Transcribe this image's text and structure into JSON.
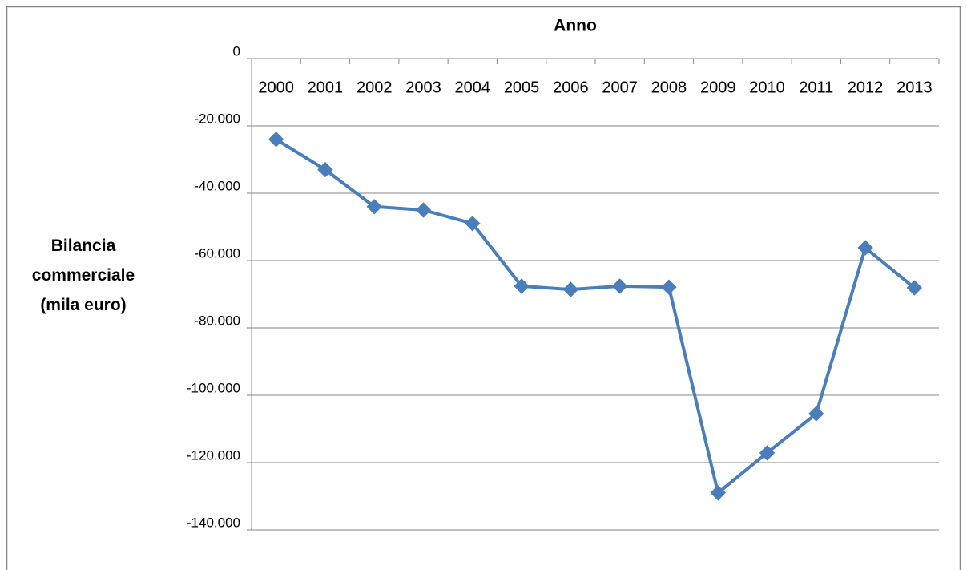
{
  "chart_data": {
    "type": "line",
    "x_axis_title": "Anno",
    "y_axis_title": "Bilancia commerciale (mila euro)",
    "categories": [
      "2000",
      "2001",
      "2002",
      "2003",
      "2004",
      "2005",
      "2006",
      "2007",
      "2008",
      "2009",
      "2010",
      "2011",
      "2012",
      "2013"
    ],
    "values": [
      -24000,
      -33000,
      -44000,
      -45000,
      -49000,
      -67600,
      -68600,
      -67600,
      -67900,
      -129000,
      -117100,
      -105500,
      -56200,
      -68100
    ],
    "color": "#4a7ebb",
    "ylim": [
      -140000,
      0
    ],
    "yticks": [
      0,
      {
        "value": -20000,
        "label": "-20.000"
      },
      {
        "value": -40000,
        "label": "-40.000"
      },
      {
        "value": -60000,
        "label": "-60.000"
      },
      {
        "value": -80000,
        "label": "-80.000"
      },
      {
        "value": -100000,
        "label": "-100.000"
      },
      {
        "value": -120000,
        "label": "-120.000"
      },
      {
        "value": -140000,
        "label": "-140.000"
      }
    ],
    "grid": true
  }
}
